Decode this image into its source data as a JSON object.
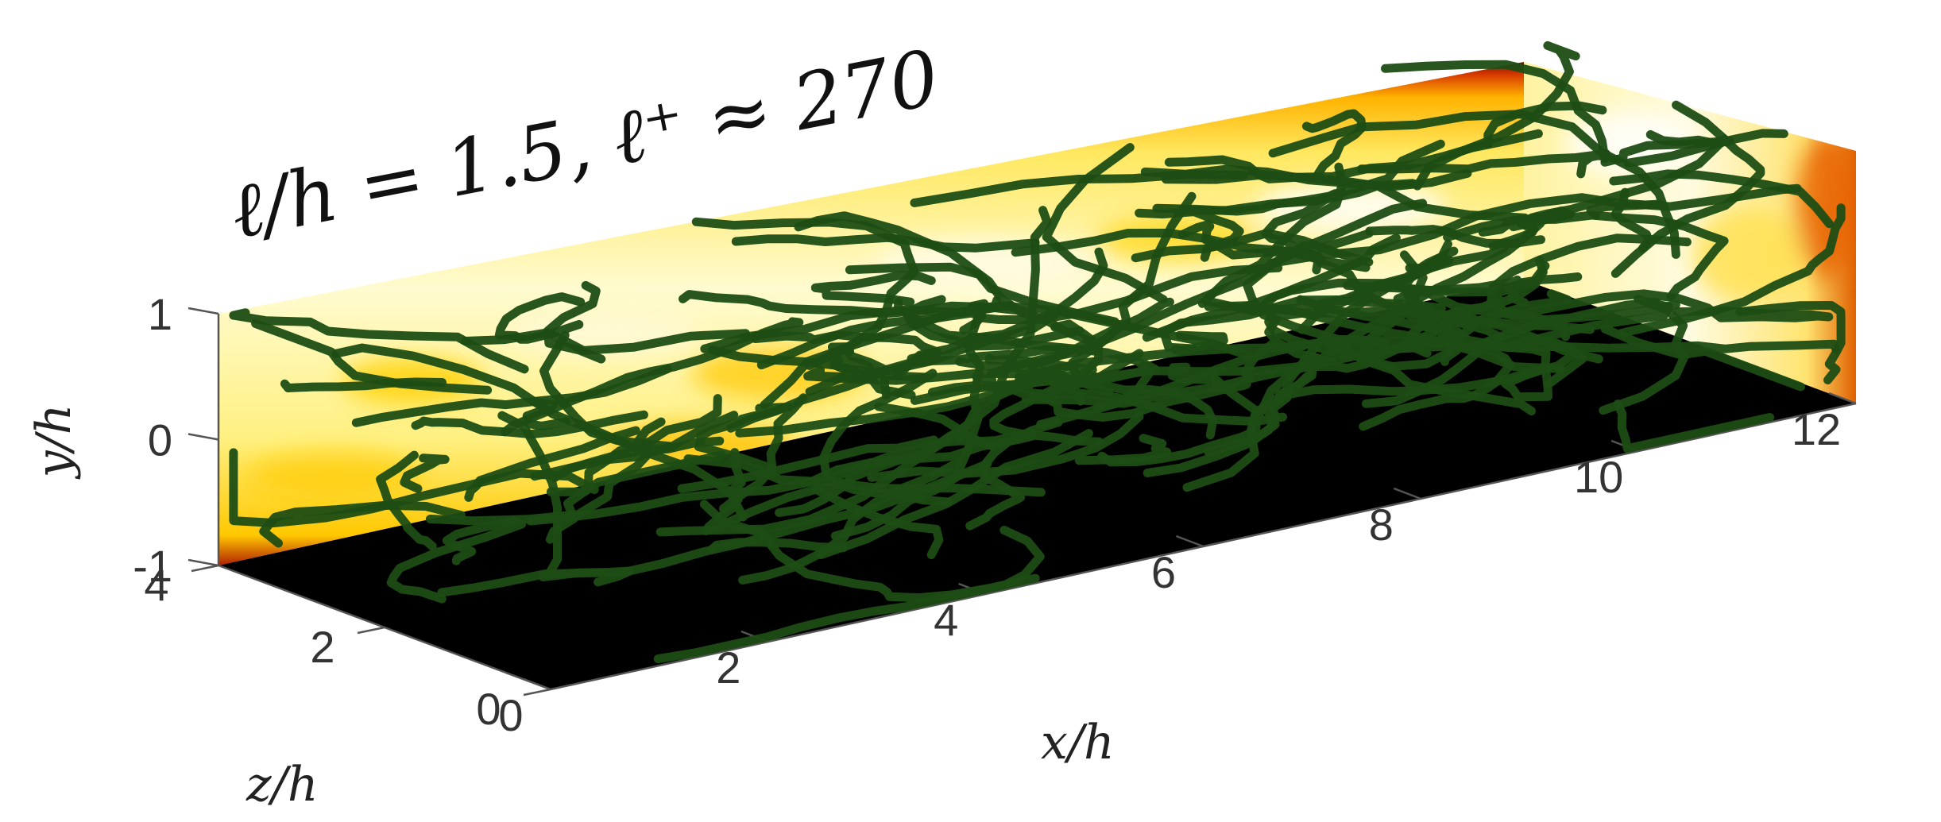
{
  "title": "ℓ/h = 1.5,  ℓ⁺ ≈ 270",
  "chart_data": {
    "type": "3d-field",
    "title": "ℓ/h = 1.5,  ℓ⁺ ≈ 270",
    "axes": {
      "x": {
        "label": "x/h",
        "ticks": [
          "0",
          "2",
          "4",
          "6",
          "8",
          "10",
          "12"
        ],
        "range": [
          0,
          12
        ]
      },
      "y": {
        "label": "y/h",
        "ticks": [
          "1",
          "0",
          "-1"
        ],
        "range": [
          -1,
          1
        ]
      },
      "z": {
        "label": "z/h",
        "ticks": [
          "4",
          "2",
          "0"
        ],
        "range": [
          0,
          4
        ]
      }
    },
    "colormap": [
      "#000000",
      "#6a0000",
      "#c81e00",
      "#ff6a00",
      "#ffd000",
      "#fff7a0",
      "#ffffff"
    ],
    "fiber_color": "#1e4d14",
    "grid": false
  }
}
